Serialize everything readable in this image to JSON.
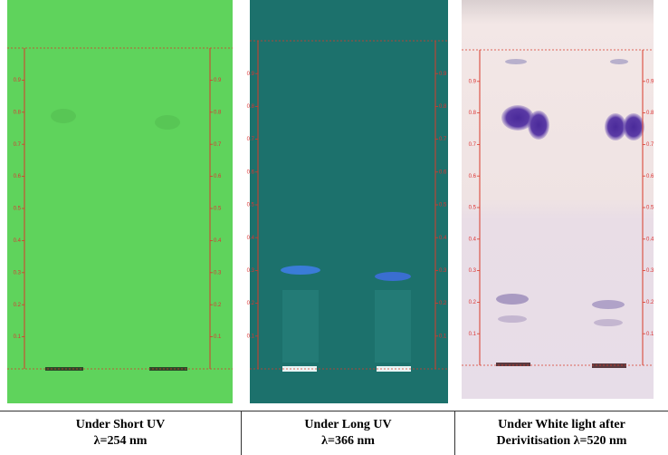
{
  "panels": [
    {
      "caption": [
        "Under Short UV",
        "λ=254 nm"
      ]
    },
    {
      "caption": [
        "Under Long UV",
        "λ=366 nm"
      ]
    },
    {
      "caption": [
        "Under White light after",
        "Derivitisation λ=520 nm"
      ]
    }
  ],
  "rf_scale": [
    "0.1",
    "0.2",
    "0.3",
    "0.4",
    "0.5",
    "0.6",
    "0.7",
    "0.8",
    "0.9"
  ]
}
